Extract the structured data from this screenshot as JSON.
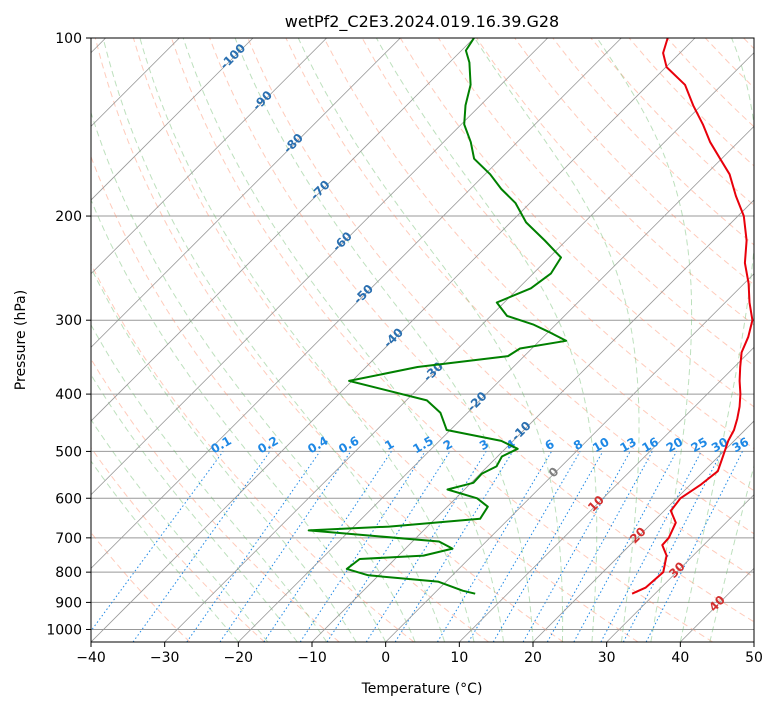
{
  "chart_data": {
    "type": "line",
    "title": "wetPf2_C2E3.2024.019.16.39.G28",
    "xlabel": "Temperature (°C)",
    "ylabel": "Pressure (hPa)",
    "xlim": [
      -40,
      50
    ],
    "ylim": [
      1050,
      100
    ],
    "y_scale": "log",
    "skew": "skew-T log-p",
    "grid": true,
    "x_ticks": [
      -40,
      -30,
      -20,
      -10,
      0,
      10,
      20,
      30,
      40,
      50
    ],
    "y_ticks": [
      100,
      200,
      300,
      400,
      500,
      600,
      700,
      800,
      900,
      1000
    ],
    "colors": {
      "temperature": "#e8000b",
      "dewpoint": "#008000",
      "mixing_ratio": "#1e88e5",
      "dry_adiabat": "#ff8c69",
      "moist_adiabat": "#6dbb6d",
      "isotherm": "#999999",
      "temp_label": "#2a6fb0",
      "warm_label": "#d32f2f",
      "zero_label": "#808080"
    },
    "series": [
      {
        "name": "",
        "role": "temperature",
        "points": [
          [
            26.9,
            870
          ],
          [
            27.9,
            850
          ],
          [
            28.2,
            800
          ],
          [
            26.4,
            750
          ],
          [
            24.4,
            720
          ],
          [
            24.3,
            700
          ],
          [
            23.2,
            660
          ],
          [
            20.9,
            630
          ],
          [
            20.5,
            600
          ],
          [
            21.4,
            570
          ],
          [
            21.9,
            540
          ],
          [
            20.6,
            510
          ],
          [
            19.2,
            480
          ],
          [
            18.5,
            460
          ],
          [
            17.4,
            440
          ],
          [
            16.1,
            420
          ],
          [
            14.5,
            400
          ],
          [
            12.6,
            380
          ],
          [
            10.8,
            360
          ],
          [
            9.0,
            340
          ],
          [
            7.8,
            320
          ],
          [
            6.1,
            300
          ],
          [
            3.3,
            280
          ],
          [
            0.6,
            260
          ],
          [
            -2.7,
            240
          ],
          [
            -5.5,
            220
          ],
          [
            -9.2,
            200
          ],
          [
            -13.0,
            185
          ],
          [
            -16.8,
            170
          ],
          [
            -20.2,
            160
          ],
          [
            -23.8,
            150
          ],
          [
            -27.2,
            140
          ],
          [
            -31.1,
            130
          ],
          [
            -35.0,
            120
          ],
          [
            -39.9,
            112
          ],
          [
            -42.3,
            106
          ],
          [
            -43.7,
            100
          ]
        ]
      },
      {
        "name": "",
        "role": "dewpoint",
        "points": [
          [
            5.6,
            870
          ],
          [
            3.5,
            860
          ],
          [
            -1.1,
            830
          ],
          [
            -11.4,
            810
          ],
          [
            -15.2,
            790
          ],
          [
            -14.8,
            760
          ],
          [
            -6.6,
            750
          ],
          [
            -3.6,
            730
          ],
          [
            -6.4,
            710
          ],
          [
            -25.6,
            680
          ],
          [
            -15.2,
            670
          ],
          [
            -3.9,
            650
          ],
          [
            -4.5,
            620
          ],
          [
            -7.1,
            600
          ],
          [
            -12.3,
            580
          ],
          [
            -9.7,
            565
          ],
          [
            -9.8,
            545
          ],
          [
            -8.8,
            530
          ],
          [
            -9.4,
            510
          ],
          [
            -8.3,
            495
          ],
          [
            -11.6,
            480
          ],
          [
            -20.5,
            460
          ],
          [
            -23.7,
            430
          ],
          [
            -27.2,
            410
          ],
          [
            -40.4,
            380
          ],
          [
            -33.0,
            360
          ],
          [
            -22.2,
            345
          ],
          [
            -21.6,
            335
          ],
          [
            -16.4,
            325
          ],
          [
            -19.6,
            315
          ],
          [
            -23.1,
            305
          ],
          [
            -27.8,
            295
          ],
          [
            -31.0,
            280
          ],
          [
            -28.3,
            265
          ],
          [
            -27.6,
            250
          ],
          [
            -28.4,
            235
          ],
          [
            -32.9,
            220
          ],
          [
            -37.9,
            205
          ],
          [
            -42.0,
            190
          ],
          [
            -45.8,
            180
          ],
          [
            -49.3,
            170
          ],
          [
            -53.6,
            160
          ],
          [
            -56.3,
            150
          ],
          [
            -59.6,
            140
          ],
          [
            -62.0,
            130
          ],
          [
            -64.1,
            120
          ],
          [
            -67.3,
            110
          ],
          [
            -69.4,
            105
          ],
          [
            -70.0,
            100
          ]
        ]
      }
    ],
    "isotherm_labels": [
      {
        "t": -100,
        "p": 107,
        "label": "-100"
      },
      {
        "t": -90,
        "p": 127,
        "label": "-90"
      },
      {
        "t": -80,
        "p": 150,
        "label": "-80"
      },
      {
        "t": -70,
        "p": 180,
        "label": "-70"
      },
      {
        "t": -60,
        "p": 220,
        "label": "-60"
      },
      {
        "t": -50,
        "p": 270,
        "label": "-50"
      },
      {
        "t": -40,
        "p": 320,
        "label": "-40"
      },
      {
        "t": -30,
        "p": 365,
        "label": "-30"
      },
      {
        "t": -20,
        "p": 410,
        "label": "-20"
      },
      {
        "t": -10,
        "p": 460,
        "label": "-10"
      },
      {
        "t": 0,
        "p": 540,
        "label": "0"
      },
      {
        "t": 10,
        "p": 610,
        "label": "10"
      },
      {
        "t": 20,
        "p": 690,
        "label": "20"
      },
      {
        "t": 30,
        "p": 790,
        "label": "30"
      },
      {
        "t": 40,
        "p": 900,
        "label": "40"
      }
    ],
    "mixing_ratio_labels": [
      "0.1",
      "0.2",
      "0.4",
      "0.6",
      "1",
      "1.5",
      "2",
      "3",
      "4",
      "6",
      "8",
      "10",
      "13",
      "16",
      "20",
      "25",
      "30",
      "36"
    ],
    "mixing_ratio_label_p": 500,
    "mixing_ratio_values": [
      0.1,
      0.2,
      0.4,
      0.6,
      1,
      1.5,
      2,
      3,
      4,
      6,
      8,
      10,
      13,
      16,
      20,
      25,
      30,
      36
    ]
  }
}
